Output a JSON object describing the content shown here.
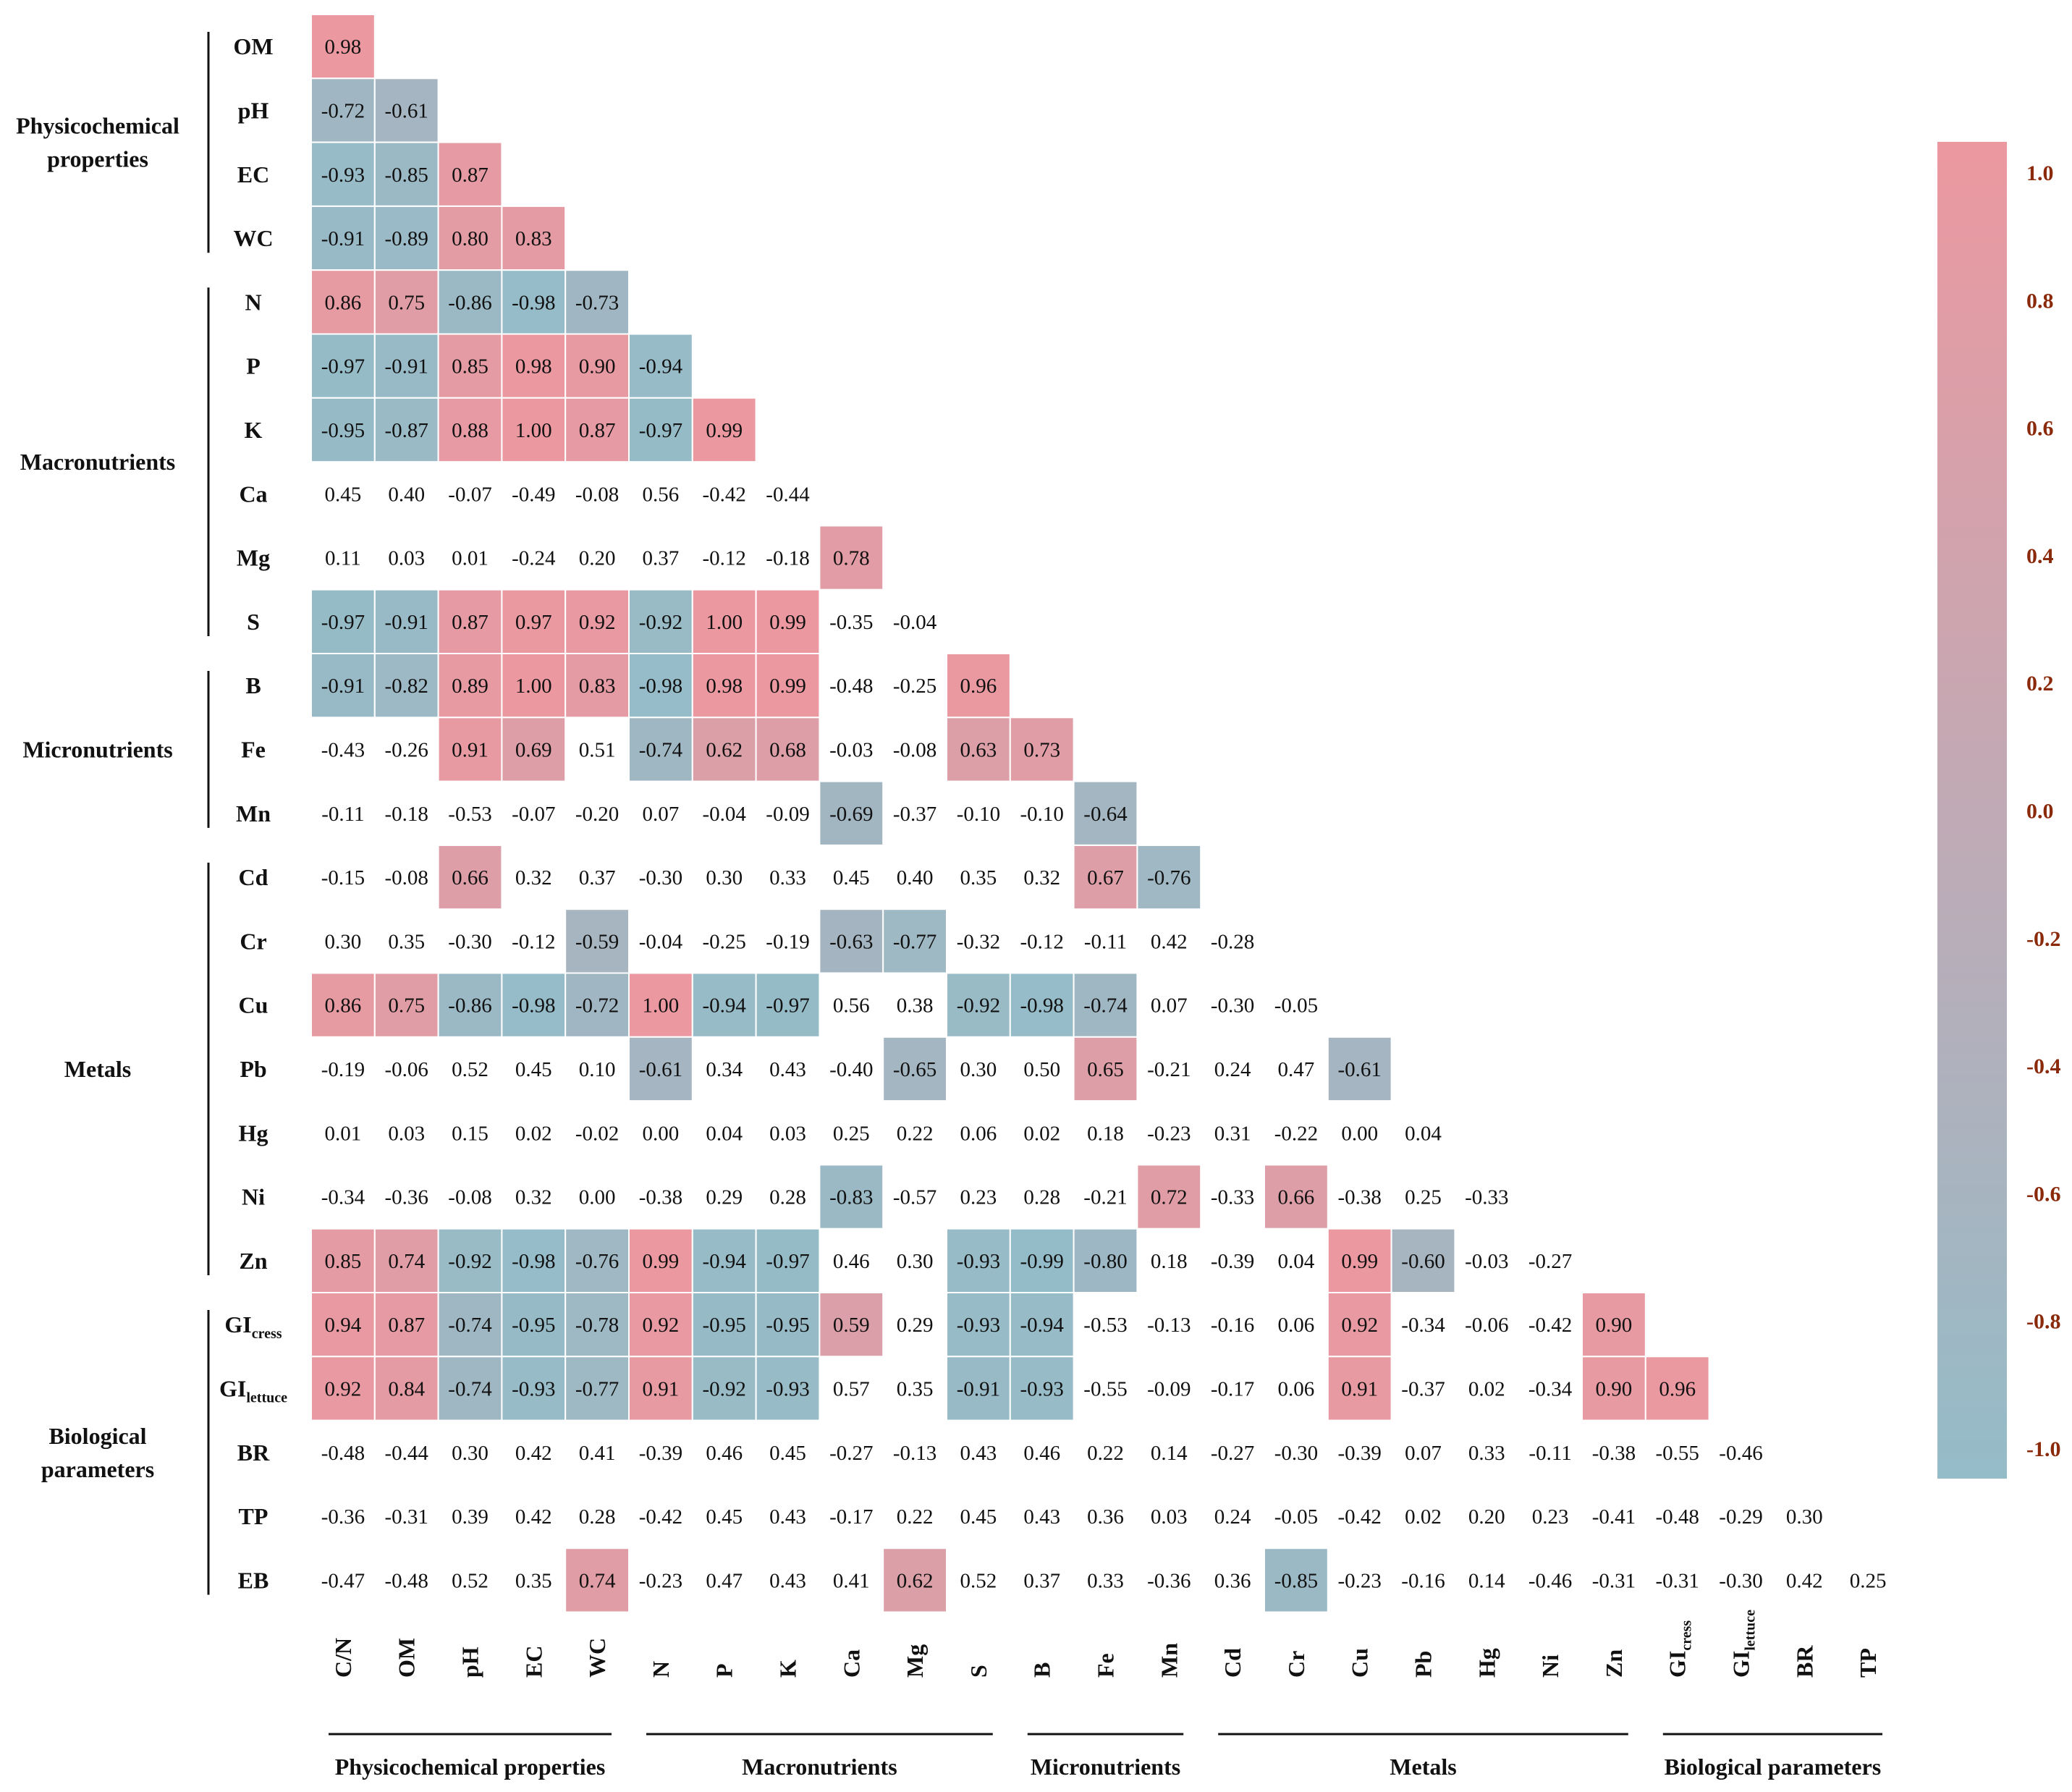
{
  "chart_data": {
    "type": "heatmap",
    "title": "",
    "highlight_threshold": 0.58,
    "colorscale": {
      "min": -1.0,
      "max": 1.0,
      "low_color": "#94bcc8",
      "mid_color": "#c0aab5",
      "high_color": "#ec98a0",
      "ticks": [
        "1.0",
        "0.8",
        "0.6",
        "0.4",
        "0.2",
        "0.0",
        "-0.2",
        "-0.4",
        "-0.6",
        "-0.8",
        "-1.0"
      ]
    },
    "rows": [
      {
        "label": "OM",
        "sub": ""
      },
      {
        "label": "pH",
        "sub": ""
      },
      {
        "label": "EC",
        "sub": ""
      },
      {
        "label": "WC",
        "sub": ""
      },
      {
        "label": "N",
        "sub": ""
      },
      {
        "label": "P",
        "sub": ""
      },
      {
        "label": "K",
        "sub": ""
      },
      {
        "label": "Ca",
        "sub": ""
      },
      {
        "label": "Mg",
        "sub": ""
      },
      {
        "label": "S",
        "sub": ""
      },
      {
        "label": "B",
        "sub": ""
      },
      {
        "label": "Fe",
        "sub": ""
      },
      {
        "label": "Mn",
        "sub": ""
      },
      {
        "label": "Cd",
        "sub": ""
      },
      {
        "label": "Cr",
        "sub": ""
      },
      {
        "label": "Cu",
        "sub": ""
      },
      {
        "label": "Pb",
        "sub": ""
      },
      {
        "label": "Hg",
        "sub": ""
      },
      {
        "label": "Ni",
        "sub": ""
      },
      {
        "label": "Zn",
        "sub": ""
      },
      {
        "label": "GI",
        "sub": "cress"
      },
      {
        "label": "GI",
        "sub": "lettuce"
      },
      {
        "label": "BR",
        "sub": ""
      },
      {
        "label": "TP",
        "sub": ""
      },
      {
        "label": "EB",
        "sub": ""
      }
    ],
    "columns": [
      {
        "label": "C/N",
        "sub": ""
      },
      {
        "label": "OM",
        "sub": ""
      },
      {
        "label": "pH",
        "sub": ""
      },
      {
        "label": "EC",
        "sub": ""
      },
      {
        "label": "WC",
        "sub": ""
      },
      {
        "label": "N",
        "sub": ""
      },
      {
        "label": "P",
        "sub": ""
      },
      {
        "label": "K",
        "sub": ""
      },
      {
        "label": "Ca",
        "sub": ""
      },
      {
        "label": "Mg",
        "sub": ""
      },
      {
        "label": "S",
        "sub": ""
      },
      {
        "label": "B",
        "sub": ""
      },
      {
        "label": "Fe",
        "sub": ""
      },
      {
        "label": "Mn",
        "sub": ""
      },
      {
        "label": "Cd",
        "sub": ""
      },
      {
        "label": "Cr",
        "sub": ""
      },
      {
        "label": "Cu",
        "sub": ""
      },
      {
        "label": "Pb",
        "sub": ""
      },
      {
        "label": "Hg",
        "sub": ""
      },
      {
        "label": "Ni",
        "sub": ""
      },
      {
        "label": "Zn",
        "sub": ""
      },
      {
        "label": "GI",
        "sub": "cress"
      },
      {
        "label": "GI",
        "sub": "lettuce"
      },
      {
        "label": "BR",
        "sub": ""
      },
      {
        "label": "TP",
        "sub": ""
      }
    ],
    "values": [
      [
        "0.98"
      ],
      [
        "-0.72",
        "-0.61"
      ],
      [
        "-0.93",
        "-0.85",
        "0.87"
      ],
      [
        "-0.91",
        "-0.89",
        "0.80",
        "0.83"
      ],
      [
        "0.86",
        "0.75",
        "-0.86",
        "-0.98",
        "-0.73"
      ],
      [
        "-0.97",
        "-0.91",
        "0.85",
        "0.98",
        "0.90",
        "-0.94"
      ],
      [
        "-0.95",
        "-0.87",
        "0.88",
        "1.00",
        "0.87",
        "-0.97",
        "0.99"
      ],
      [
        "0.45",
        "0.40",
        "-0.07",
        "-0.49",
        "-0.08",
        "0.56",
        "-0.42",
        "-0.44"
      ],
      [
        "0.11",
        "0.03",
        "0.01",
        "-0.24",
        "0.20",
        "0.37",
        "-0.12",
        "-0.18",
        "0.78"
      ],
      [
        "-0.97",
        "-0.91",
        "0.87",
        "0.97",
        "0.92",
        "-0.92",
        "1.00",
        "0.99",
        "-0.35",
        "-0.04"
      ],
      [
        "-0.91",
        "-0.82",
        "0.89",
        "1.00",
        "0.83",
        "-0.98",
        "0.98",
        "0.99",
        "-0.48",
        "-0.25",
        "0.96"
      ],
      [
        "-0.43",
        "-0.26",
        "0.91",
        "0.69",
        "0.51",
        "-0.74",
        "0.62",
        "0.68",
        "-0.03",
        "-0.08",
        "0.63",
        "0.73"
      ],
      [
        "-0.11",
        "-0.18",
        "-0.53",
        "-0.07",
        "-0.20",
        "0.07",
        "-0.04",
        "-0.09",
        "-0.69",
        "-0.37",
        "-0.10",
        "-0.10",
        "-0.64"
      ],
      [
        "-0.15",
        "-0.08",
        "0.66",
        "0.32",
        "0.37",
        "-0.30",
        "0.30",
        "0.33",
        "0.45",
        "0.40",
        "0.35",
        "0.32",
        "0.67",
        "-0.76"
      ],
      [
        "0.30",
        "0.35",
        "-0.30",
        "-0.12",
        "-0.59",
        "-0.04",
        "-0.25",
        "-0.19",
        "-0.63",
        "-0.77",
        "-0.32",
        "-0.12",
        "-0.11",
        "0.42",
        "-0.28"
      ],
      [
        "0.86",
        "0.75",
        "-0.86",
        "-0.98",
        "-0.72",
        "1.00",
        "-0.94",
        "-0.97",
        "0.56",
        "0.38",
        "-0.92",
        "-0.98",
        "-0.74",
        "0.07",
        "-0.30",
        "-0.05"
      ],
      [
        "-0.19",
        "-0.06",
        "0.52",
        "0.45",
        "0.10",
        "-0.61",
        "0.34",
        "0.43",
        "-0.40",
        "-0.65",
        "0.30",
        "0.50",
        "0.65",
        "-0.21",
        "0.24",
        "0.47",
        "-0.61"
      ],
      [
        "0.01",
        "0.03",
        "0.15",
        "0.02",
        "-0.02",
        "0.00",
        "0.04",
        "0.03",
        "0.25",
        "0.22",
        "0.06",
        "0.02",
        "0.18",
        "-0.23",
        "0.31",
        "-0.22",
        "0.00",
        "0.04"
      ],
      [
        "-0.34",
        "-0.36",
        "-0.08",
        "0.32",
        "0.00",
        "-0.38",
        "0.29",
        "0.28",
        "-0.83",
        "-0.57",
        "0.23",
        "0.28",
        "-0.21",
        "0.72",
        "-0.33",
        "0.66",
        "-0.38",
        "0.25",
        "-0.33"
      ],
      [
        "0.85",
        "0.74",
        "-0.92",
        "-0.98",
        "-0.76",
        "0.99",
        "-0.94",
        "-0.97",
        "0.46",
        "0.30",
        "-0.93",
        "-0.99",
        "-0.80",
        "0.18",
        "-0.39",
        "0.04",
        "0.99",
        "-0.60",
        "-0.03",
        "-0.27"
      ],
      [
        "0.94",
        "0.87",
        "-0.74",
        "-0.95",
        "-0.78",
        "0.92",
        "-0.95",
        "-0.95",
        "0.59",
        "0.29",
        "-0.93",
        "-0.94",
        "-0.53",
        "-0.13",
        "-0.16",
        "0.06",
        "0.92",
        "-0.34",
        "-0.06",
        "-0.42",
        "0.90"
      ],
      [
        "0.92",
        "0.84",
        "-0.74",
        "-0.93",
        "-0.77",
        "0.91",
        "-0.92",
        "-0.93",
        "0.57",
        "0.35",
        "-0.91",
        "-0.93",
        "-0.55",
        "-0.09",
        "-0.17",
        "0.06",
        "0.91",
        "-0.37",
        "0.02",
        "-0.34",
        "0.90",
        "0.96"
      ],
      [
        "-0.48",
        "-0.44",
        "0.30",
        "0.42",
        "0.41",
        "-0.39",
        "0.46",
        "0.45",
        "-0.27",
        "-0.13",
        "0.43",
        "0.46",
        "0.22",
        "0.14",
        "-0.27",
        "-0.30",
        "-0.39",
        "0.07",
        "0.33",
        "-0.11",
        "-0.38",
        "-0.55",
        "-0.46"
      ],
      [
        "-0.36",
        "-0.31",
        "0.39",
        "0.42",
        "0.28",
        "-0.42",
        "0.45",
        "0.43",
        "-0.17",
        "0.22",
        "0.45",
        "0.43",
        "0.36",
        "0.03",
        "0.24",
        "-0.05",
        "-0.42",
        "0.02",
        "0.20",
        "0.23",
        "-0.41",
        "-0.48",
        "-0.29",
        "0.30"
      ],
      [
        "-0.47",
        "-0.48",
        "0.52",
        "0.35",
        "0.74",
        "-0.23",
        "0.47",
        "0.43",
        "0.41",
        "0.62",
        "0.52",
        "0.37",
        "0.33",
        "-0.36",
        "0.36",
        "-0.85",
        "-0.23",
        "-0.16",
        "0.14",
        "-0.46",
        "-0.31",
        "-0.31",
        "-0.30",
        "0.42",
        "0.25"
      ]
    ],
    "row_groups": [
      {
        "name_lines": [
          "Physicochemical",
          "properties"
        ],
        "start": 0,
        "end": 3
      },
      {
        "name_lines": [
          "Macronutrients"
        ],
        "start": 4,
        "end": 9
      },
      {
        "name_lines": [
          "Micronutrients"
        ],
        "start": 10,
        "end": 12
      },
      {
        "name_lines": [
          "Metals"
        ],
        "start": 13,
        "end": 19
      },
      {
        "name_lines": [
          "Biological",
          "parameters"
        ],
        "start": 20,
        "end": 24
      }
    ],
    "column_groups": [
      {
        "name": "Physicochemical properties",
        "start": 0,
        "end": 4
      },
      {
        "name": "Macronutrients",
        "start": 5,
        "end": 10
      },
      {
        "name": "Micronutrients",
        "start": 11,
        "end": 13
      },
      {
        "name": "Metals",
        "start": 14,
        "end": 20
      },
      {
        "name": "Biological parameters",
        "start": 21,
        "end": 24
      }
    ]
  }
}
